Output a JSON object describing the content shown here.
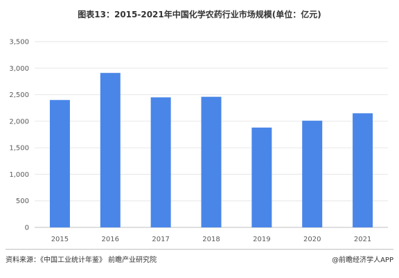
{
  "chart_data": {
    "type": "bar",
    "title": "图表13：2015-2021年中国化学农药行业市场规模(单位：亿元)",
    "categories": [
      "2015",
      "2016",
      "2017",
      "2018",
      "2019",
      "2020",
      "2021"
    ],
    "values": [
      2400,
      2910,
      2450,
      2460,
      1880,
      2010,
      2150
    ],
    "ylim": [
      0,
      3500
    ],
    "yticks": [
      0,
      500,
      1000,
      1500,
      2000,
      2500,
      3000,
      3500
    ],
    "ytick_labels": [
      "0",
      "500",
      "1,000",
      "1,500",
      "2,000",
      "2,500",
      "3,000",
      "3,500"
    ],
    "bar_color": "#4a86e8",
    "grid": true
  },
  "footer": {
    "source": "资料来源：《中国工业统计年鉴》 前瞻产业研究院",
    "brand": "@前瞻经济学人APP"
  }
}
